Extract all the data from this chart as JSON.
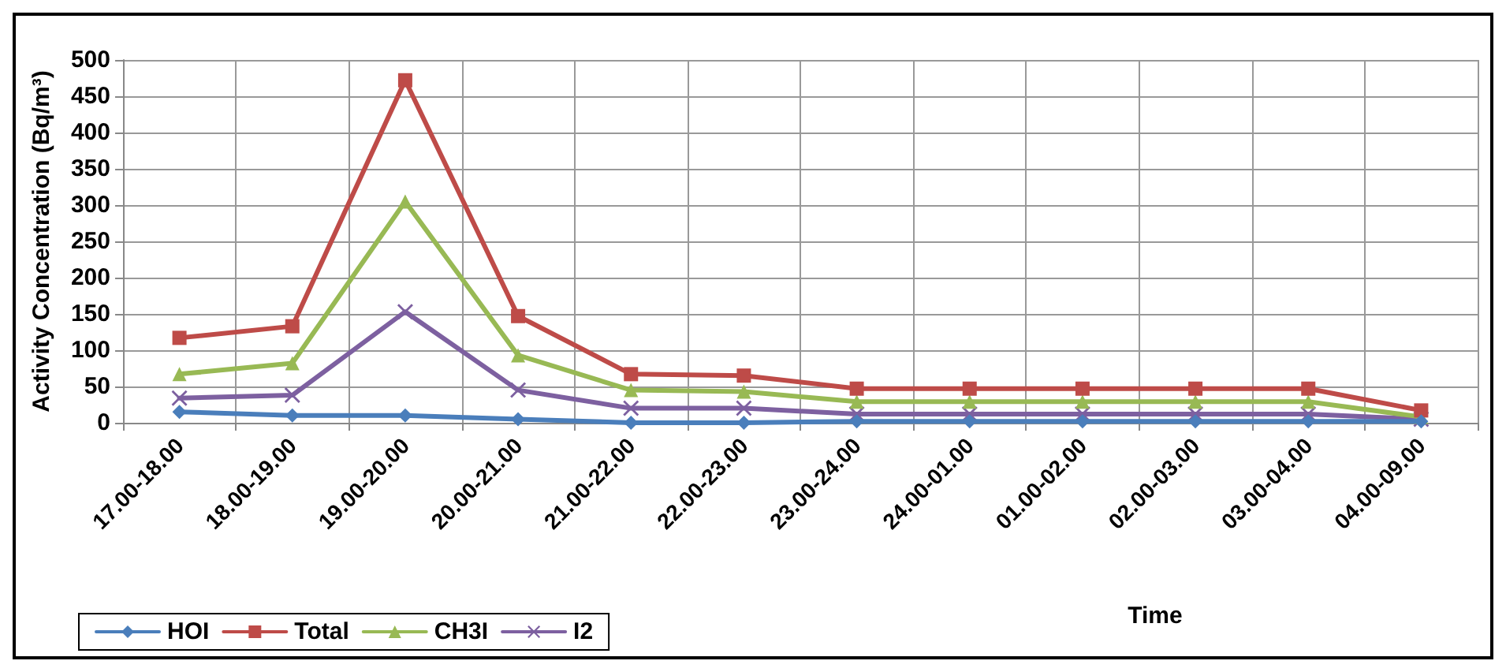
{
  "chart_data": {
    "type": "line",
    "xlabel": "Time",
    "ylabel": "Activity Concentration (Bq/m³)",
    "categories": [
      "17.00-18.00",
      "18.00-19.00",
      "19.00-20.00",
      "20.00-21.00",
      "21.00-22.00",
      "22.00-23.00",
      "23.00-24.00",
      "24.00-01.00",
      "01.00-02.00",
      "02.00-03.00",
      "03.00-04.00",
      "04.00-09.00"
    ],
    "series": [
      {
        "name": "HOI",
        "color": "#4a7ebb",
        "marker": "diamond",
        "values": [
          15,
          10,
          10,
          5,
          0,
          0,
          2,
          2,
          2,
          2,
          2,
          2
        ]
      },
      {
        "name": "Total",
        "color": "#be4b48",
        "marker": "square",
        "values": [
          117,
          133,
          472,
          147,
          67,
          65,
          47,
          47,
          47,
          47,
          47,
          17
        ]
      },
      {
        "name": "CH3I",
        "color": "#98b954",
        "marker": "triangle",
        "values": [
          67,
          82,
          305,
          93,
          45,
          43,
          29,
          29,
          29,
          29,
          29,
          8
        ]
      },
      {
        "name": "I2",
        "color": "#7d60a0",
        "marker": "cross",
        "values": [
          34,
          38,
          153,
          45,
          20,
          20,
          12,
          12,
          12,
          12,
          12,
          5
        ]
      }
    ],
    "ylim": [
      0,
      500
    ],
    "yticks": [
      0,
      50,
      100,
      150,
      200,
      250,
      300,
      350,
      400,
      450,
      500
    ],
    "grid": true,
    "legend": "bottom left",
    "line_style": "solid"
  }
}
